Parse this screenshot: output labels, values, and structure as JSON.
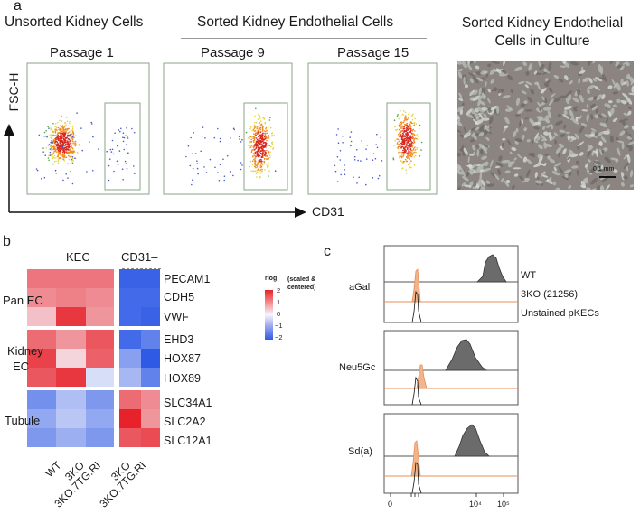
{
  "panel_a": {
    "letter": "a",
    "headers": {
      "unsorted": "Unsorted Kidney Cells",
      "sorted": "Sorted Kidney Endothelial Cells",
      "culture": "Sorted Kidney Endothelial Cells in Culture"
    },
    "passages": [
      "Passage 1",
      "Passage 9",
      "Passage 15"
    ],
    "y_axis": "FSC-H",
    "x_axis": "CD31",
    "scale_bar": "0.1 mm"
  },
  "panel_b": {
    "letter": "b",
    "column_groups": [
      "KEC",
      "CD31–"
    ],
    "row_groups": [
      {
        "label": "Pan EC",
        "genes": [
          "PECAM1",
          "CDH5",
          "VWF"
        ]
      },
      {
        "label": "Kidney EC",
        "genes": [
          "EHD3",
          "HOX87",
          "HOX89"
        ]
      },
      {
        "label": "Tubule",
        "genes": [
          "SLC34A1",
          "SLC2A2",
          "SLC12A1"
        ]
      }
    ],
    "columns": [
      "WT",
      "3KO",
      "3KO.7TG.RI",
      "3KO",
      "3KO.7TG.RI"
    ],
    "legend": {
      "title": "rlog",
      "note": "(scaled & centered)",
      "ticks": [
        "2",
        "1",
        "0",
        "−1",
        "−2"
      ]
    },
    "matrix": [
      [
        1.2,
        1.2,
        1.2,
        -1.9,
        -1.9
      ],
      [
        1.0,
        1.1,
        1.0,
        -1.8,
        -1.8
      ],
      [
        0.5,
        1.8,
        0.9,
        -1.8,
        -1.9
      ],
      [
        1.3,
        0.9,
        1.5,
        -1.8,
        -1.5
      ],
      [
        1.7,
        0.3,
        1.4,
        -1.1,
        -2.0
      ],
      [
        1.5,
        1.8,
        -0.3,
        -0.8,
        -1.5
      ],
      [
        -1.3,
        -0.7,
        -1.2,
        1.3,
        1.0
      ],
      [
        -1.0,
        -0.6,
        -1.0,
        2.0,
        0.9
      ],
      [
        -1.2,
        -0.9,
        -1.2,
        1.5,
        1.6
      ]
    ]
  },
  "panel_c": {
    "letter": "c",
    "markers": [
      "aGal",
      "Neu5Gc",
      "Sd(a)"
    ],
    "legend": [
      "WT",
      "3KO (21256)",
      "Unstained pKECs"
    ],
    "x_ticks": [
      "0",
      "10⁴",
      "10⁵"
    ]
  }
}
